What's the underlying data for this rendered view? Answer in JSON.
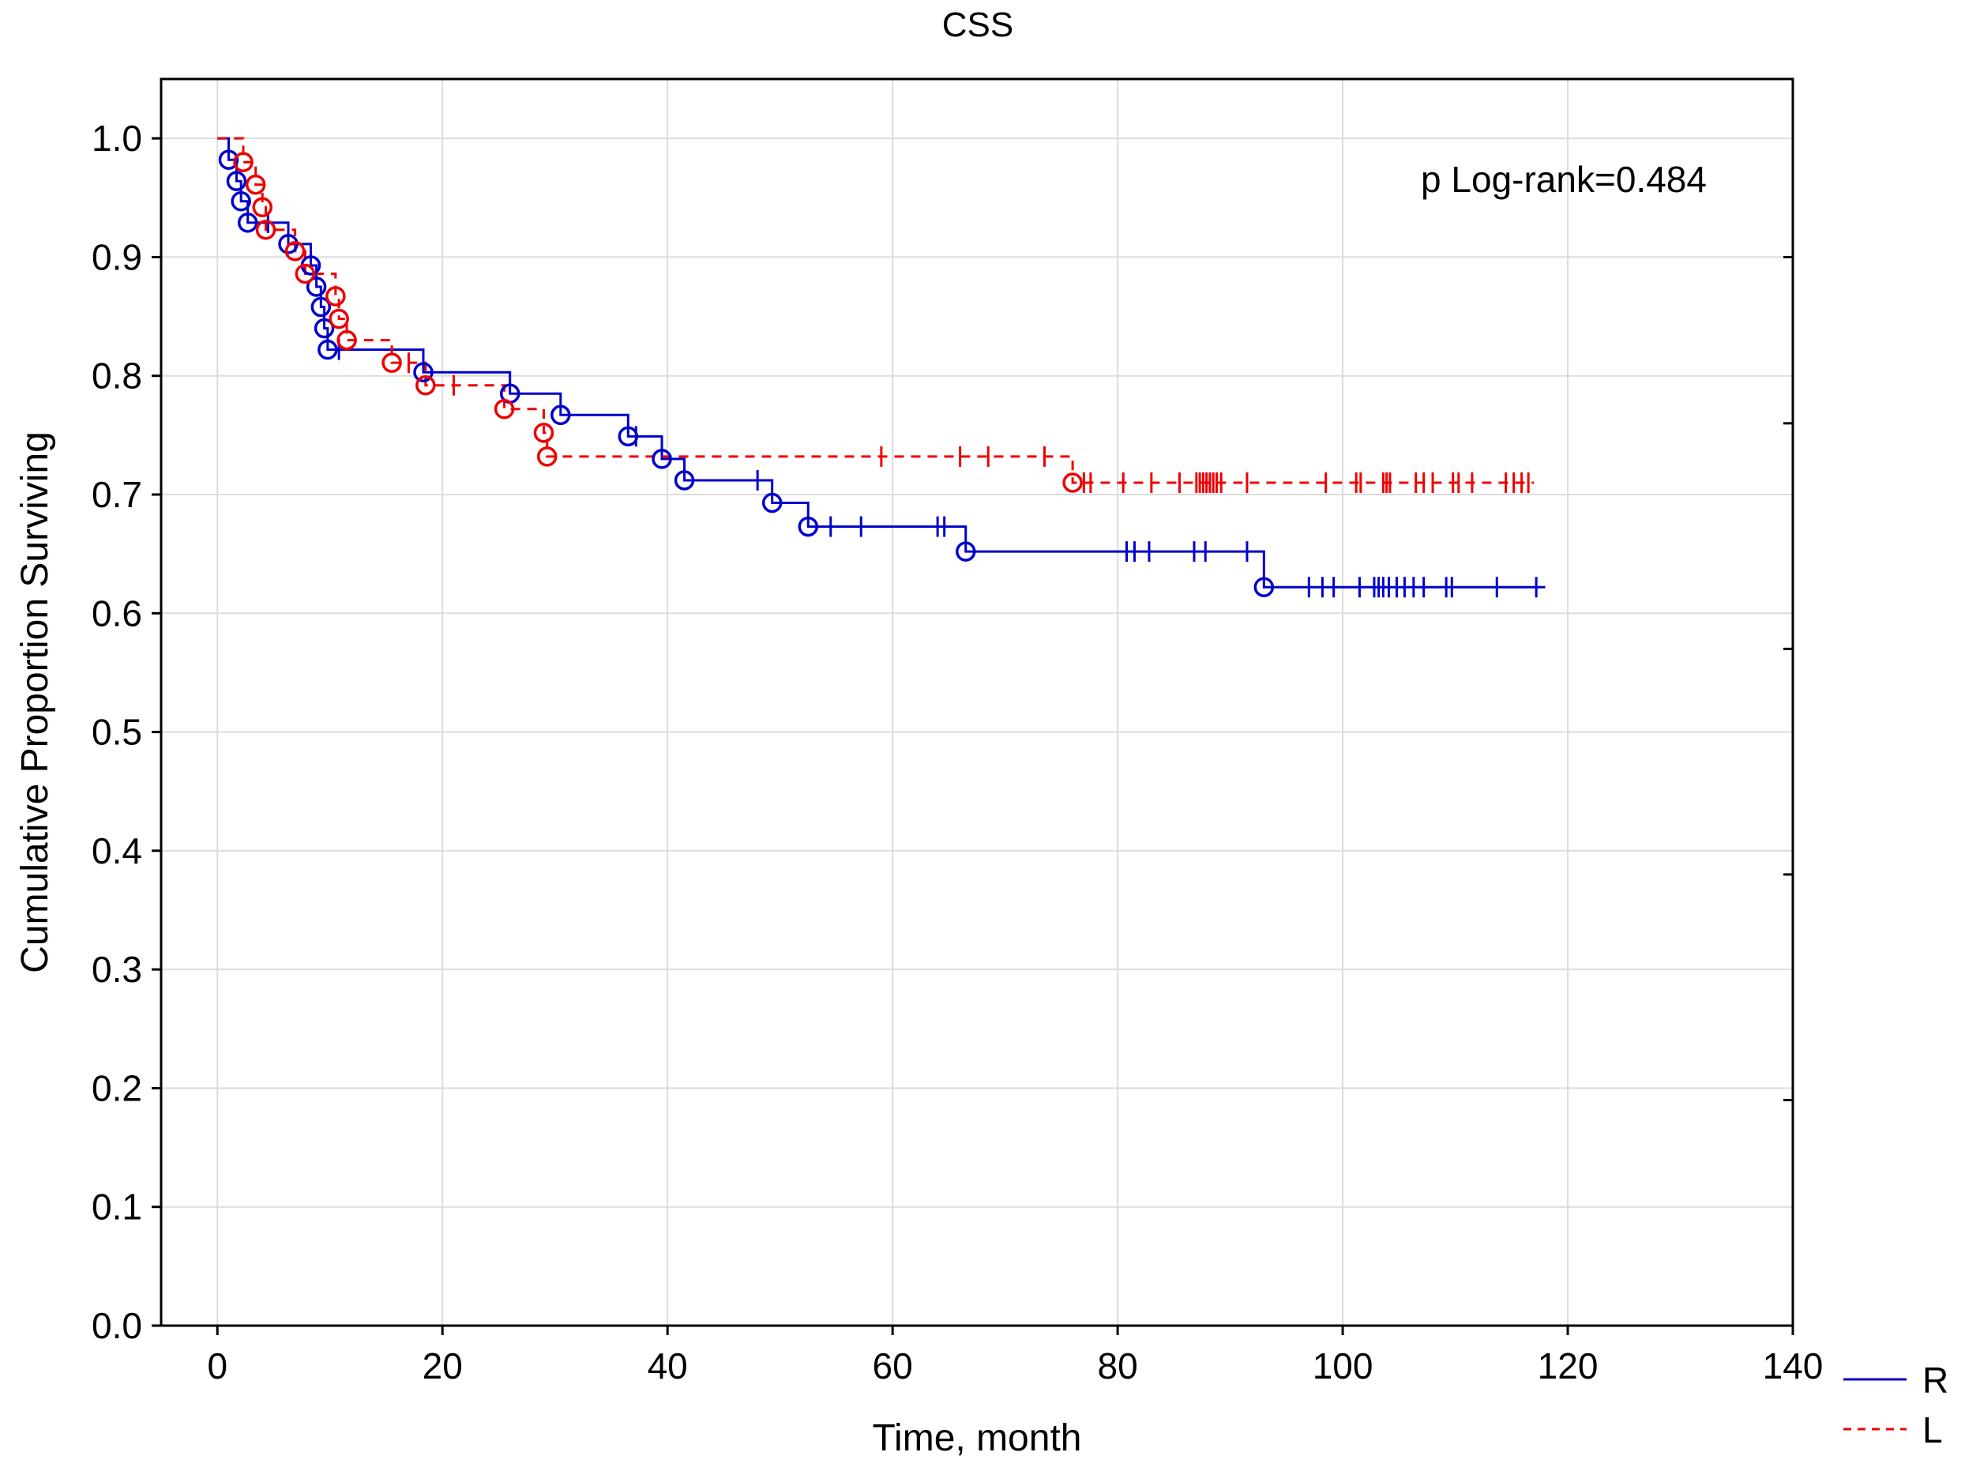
{
  "chart_data": {
    "type": "line",
    "subtype": "kaplan-meier",
    "title": "CSS",
    "xlabel": "Time, month",
    "ylabel": "Cumulative Proportion Surviving",
    "xlim": [
      -5,
      140
    ],
    "ylim": [
      0,
      1.05
    ],
    "xticks": [
      0,
      20,
      40,
      60,
      80,
      100,
      120,
      140
    ],
    "xtick_labels": [
      "0",
      "20",
      "40",
      "60",
      "80",
      "100",
      "120",
      "140"
    ],
    "yticks": [
      0,
      0.1,
      0.2,
      0.3,
      0.4,
      0.5,
      0.6,
      0.7,
      0.8,
      0.9,
      1.0
    ],
    "ytick_labels": [
      "0.0",
      "0.1",
      "0.2",
      "0.3",
      "0.4",
      "0.5",
      "0.6",
      "0.7",
      "0.8",
      "0.9",
      "1.0"
    ],
    "grid": true,
    "legend_position": "bottom-right-outside",
    "annotation": "p Log-rank=0.484",
    "series": [
      {
        "name": "R",
        "color": "#0000cc",
        "dash": "solid",
        "steps": [
          [
            0,
            1.0
          ],
          [
            1.0,
            0.982
          ],
          [
            1.7,
            0.964
          ],
          [
            2.1,
            0.947
          ],
          [
            2.7,
            0.929
          ],
          [
            6.3,
            0.911
          ],
          [
            8.3,
            0.893
          ],
          [
            8.8,
            0.875
          ],
          [
            9.2,
            0.858
          ],
          [
            9.5,
            0.84
          ],
          [
            9.8,
            0.822
          ],
          [
            18.3,
            0.803
          ],
          [
            26.0,
            0.785
          ],
          [
            30.5,
            0.767
          ],
          [
            36.5,
            0.749
          ],
          [
            39.5,
            0.73
          ],
          [
            41.5,
            0.712
          ],
          [
            49.3,
            0.693
          ],
          [
            52.5,
            0.673
          ],
          [
            66.5,
            0.652
          ],
          [
            93.0,
            0.622
          ],
          [
            118,
            0.622
          ]
        ],
        "events": [
          1.0,
          1.7,
          2.1,
          2.7,
          6.3,
          8.3,
          8.8,
          9.2,
          9.5,
          9.8,
          18.3,
          26.0,
          30.5,
          36.5,
          39.5,
          41.5,
          49.3,
          52.5,
          66.5,
          93.0
        ],
        "censored": [
          4.5,
          10.8,
          37.2,
          48.0,
          54.5,
          57.2,
          64.0,
          64.6,
          80.8,
          81.5,
          82.8,
          86.8,
          87.8,
          91.5,
          97.0,
          98.2,
          99.2,
          101.5,
          102.8,
          103.2,
          103.6,
          104.1,
          104.8,
          105.5,
          106.3,
          107.2,
          109.2,
          109.7,
          113.7,
          117.2
        ]
      },
      {
        "name": "L",
        "color": "#ee0000",
        "dash": "dashed",
        "steps": [
          [
            0,
            1.0
          ],
          [
            2.3,
            0.98
          ],
          [
            3.4,
            0.961
          ],
          [
            4.0,
            0.942
          ],
          [
            4.3,
            0.923
          ],
          [
            6.9,
            0.905
          ],
          [
            7.8,
            0.886
          ],
          [
            10.5,
            0.867
          ],
          [
            10.8,
            0.848
          ],
          [
            11.5,
            0.83
          ],
          [
            15.5,
            0.811
          ],
          [
            18.5,
            0.792
          ],
          [
            25.5,
            0.772
          ],
          [
            29.0,
            0.752
          ],
          [
            29.3,
            0.732
          ],
          [
            76.0,
            0.71
          ],
          [
            117,
            0.71
          ]
        ],
        "events": [
          2.3,
          3.4,
          4.0,
          4.3,
          6.9,
          7.8,
          10.5,
          10.8,
          11.5,
          15.5,
          18.5,
          25.5,
          29.0,
          29.3,
          76.0
        ],
        "censored": [
          17.0,
          21.0,
          59.0,
          66.0,
          68.5,
          73.5,
          77.0,
          77.6,
          80.5,
          83.0,
          85.5,
          87.0,
          87.3,
          87.6,
          87.9,
          88.2,
          88.5,
          88.8,
          89.2,
          91.5,
          98.5,
          101.2,
          101.6,
          103.6,
          103.9,
          104.2,
          106.5,
          107.2,
          108.0,
          109.8,
          110.3,
          111.5,
          114.5,
          115.2,
          115.9,
          116.5
        ]
      }
    ]
  }
}
